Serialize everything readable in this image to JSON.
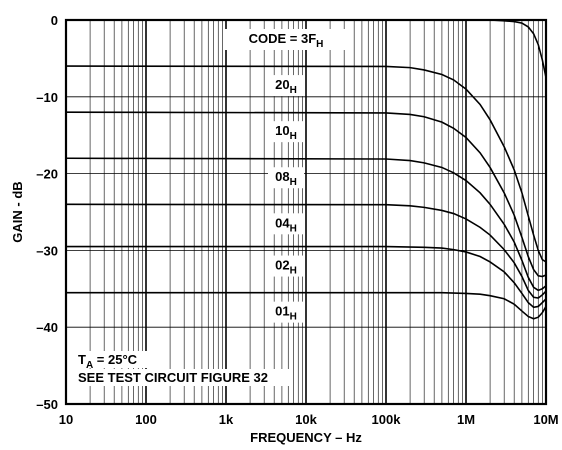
{
  "chart_data": {
    "type": "line",
    "xlabel": "FREQUENCY – Hz",
    "ylabel": "GAIN - dB",
    "x_scale": "log",
    "xlim": [
      10,
      10000000
    ],
    "ylim": [
      -50,
      0
    ],
    "x_ticks": [
      "10",
      "100",
      "1k",
      "10k",
      "100k",
      "1M",
      "10M"
    ],
    "y_ticks": [
      "0",
      "–10",
      "–20",
      "–30",
      "–40",
      "–50"
    ],
    "grid": true,
    "code_prefix": "CODE = ",
    "series": [
      {
        "name": "3F",
        "sub": "H",
        "x": [
          10,
          100000,
          1000000,
          2000000,
          3000000,
          4000000,
          5000000,
          6000000,
          7000000,
          8000000,
          9000000,
          10000000
        ],
        "y": [
          0,
          0,
          0,
          0,
          -0.1,
          -0.2,
          -0.4,
          -0.9,
          -1.8,
          -3.2,
          -5.2,
          -7.5
        ]
      },
      {
        "name": "20",
        "sub": "H",
        "x": [
          10,
          100000,
          200000,
          300000,
          500000,
          700000,
          1000000,
          1500000,
          2000000,
          3000000,
          4000000,
          5000000,
          6000000,
          7000000,
          8000000,
          9000000,
          10000000
        ],
        "y": [
          -6,
          -6.05,
          -6.2,
          -6.5,
          -7.1,
          -7.8,
          -9.0,
          -11.0,
          -13.0,
          -16.5,
          -19.5,
          -22.5,
          -25.5,
          -28.0,
          -30.0,
          -31.2,
          -31.5
        ]
      },
      {
        "name": "10",
        "sub": "H",
        "x": [
          10,
          100000,
          200000,
          300000,
          500000,
          700000,
          1000000,
          1500000,
          2000000,
          3000000,
          4000000,
          5000000,
          6000000,
          7000000,
          8000000,
          9000000,
          10000000
        ],
        "y": [
          -12,
          -12.1,
          -12.3,
          -12.6,
          -13.3,
          -14.1,
          -15.3,
          -17.3,
          -19.2,
          -22.5,
          -25.4,
          -28.3,
          -30.8,
          -32.5,
          -33.3,
          -33.4,
          -33.2
        ]
      },
      {
        "name": "08",
        "sub": "H",
        "x": [
          10,
          100000,
          200000,
          300000,
          500000,
          700000,
          1000000,
          1500000,
          2000000,
          3000000,
          4000000,
          5000000,
          6000000,
          7000000,
          8000000,
          9000000,
          10000000
        ],
        "y": [
          -18,
          -18.1,
          -18.3,
          -18.6,
          -19.2,
          -19.9,
          -20.9,
          -22.5,
          -24.0,
          -26.6,
          -28.9,
          -31.3,
          -33.5,
          -34.8,
          -35.2,
          -35.0,
          -34.6
        ]
      },
      {
        "name": "04",
        "sub": "H",
        "x": [
          10,
          100000,
          200000,
          300000,
          500000,
          700000,
          1000000,
          1500000,
          2000000,
          3000000,
          4000000,
          5000000,
          6000000,
          7000000,
          8000000,
          9000000,
          10000000
        ],
        "y": [
          -24,
          -24.05,
          -24.2,
          -24.4,
          -24.8,
          -25.2,
          -25.9,
          -27.0,
          -28.0,
          -29.9,
          -31.6,
          -33.4,
          -35.2,
          -36.1,
          -36.2,
          -35.8,
          -35.3
        ]
      },
      {
        "name": "02",
        "sub": "H",
        "x": [
          10,
          100000,
          300000,
          500000,
          700000,
          1000000,
          1500000,
          2000000,
          3000000,
          4000000,
          5000000,
          6000000,
          7000000,
          8000000,
          9000000,
          10000000
        ],
        "y": [
          -29.5,
          -29.5,
          -29.6,
          -29.7,
          -29.9,
          -30.2,
          -30.8,
          -31.5,
          -32.8,
          -34.2,
          -35.6,
          -36.8,
          -37.4,
          -37.3,
          -36.8,
          -36.3
        ]
      },
      {
        "name": "01",
        "sub": "H",
        "x": [
          10,
          100000,
          500000,
          1000000,
          1500000,
          2000000,
          3000000,
          4000000,
          5000000,
          6000000,
          7000000,
          8000000,
          9000000,
          10000000
        ],
        "y": [
          -35.5,
          -35.5,
          -35.5,
          -35.6,
          -35.7,
          -35.9,
          -36.3,
          -37.0,
          -37.9,
          -38.6,
          -38.9,
          -38.7,
          -38.1,
          -37.3
        ]
      }
    ],
    "annotations": {
      "temp_prefix": "T",
      "temp_sub": "A",
      "temp_value": " = 25°C",
      "circuit": "SEE TEST CIRCUIT FIGURE 32"
    }
  }
}
